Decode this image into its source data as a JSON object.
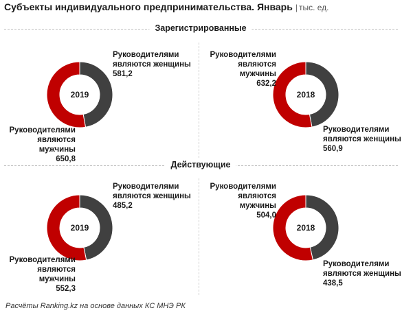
{
  "header": {
    "title": "Субъекты индивидуального предпринимательства. Январь",
    "separator": "|",
    "unit": "тыс. ед."
  },
  "sections": [
    {
      "label": "Зарегистрированные"
    },
    {
      "label": "Действующие"
    }
  ],
  "labels": {
    "women": "Руководителями являются женщины",
    "men": "Руководителями являются мужчины",
    "women_l1": "Руководителями",
    "women_l2": "являются женщины",
    "men_l1": "Руководителями",
    "men_l2": "являются мужчины"
  },
  "chart_data": [
    {
      "type": "pie",
      "section": "Зарегистрированные",
      "center_label": "2019",
      "series": [
        {
          "name": "Руководителями являются женщины",
          "value": 581.2,
          "display": "581,2"
        },
        {
          "name": "Руководителями являются мужчины",
          "value": 650.8,
          "display": "650,8"
        }
      ]
    },
    {
      "type": "pie",
      "section": "Зарегистрированные",
      "center_label": "2018",
      "series": [
        {
          "name": "Руководителями являются женщины",
          "value": 560.9,
          "display": "560,9"
        },
        {
          "name": "Руководителями являются мужчины",
          "value": 632.2,
          "display": "632,2"
        }
      ]
    },
    {
      "type": "pie",
      "section": "Действующие",
      "center_label": "2019",
      "series": [
        {
          "name": "Руководителями являются женщины",
          "value": 485.2,
          "display": "485,2"
        },
        {
          "name": "Руководителями являются мужчины",
          "value": 552.3,
          "display": "552,3"
        }
      ]
    },
    {
      "type": "pie",
      "section": "Действующие",
      "center_label": "2018",
      "series": [
        {
          "name": "Руководителями являются женщины",
          "value": 438.5,
          "display": "438,5"
        },
        {
          "name": "Руководителями являются мужчины",
          "value": 504.0,
          "display": "504,0"
        }
      ]
    }
  ],
  "colors": {
    "women": "#404040",
    "men": "#c00000"
  },
  "footer": "Расчёты Ranking.kz на основе данных КС МНЭ РК"
}
